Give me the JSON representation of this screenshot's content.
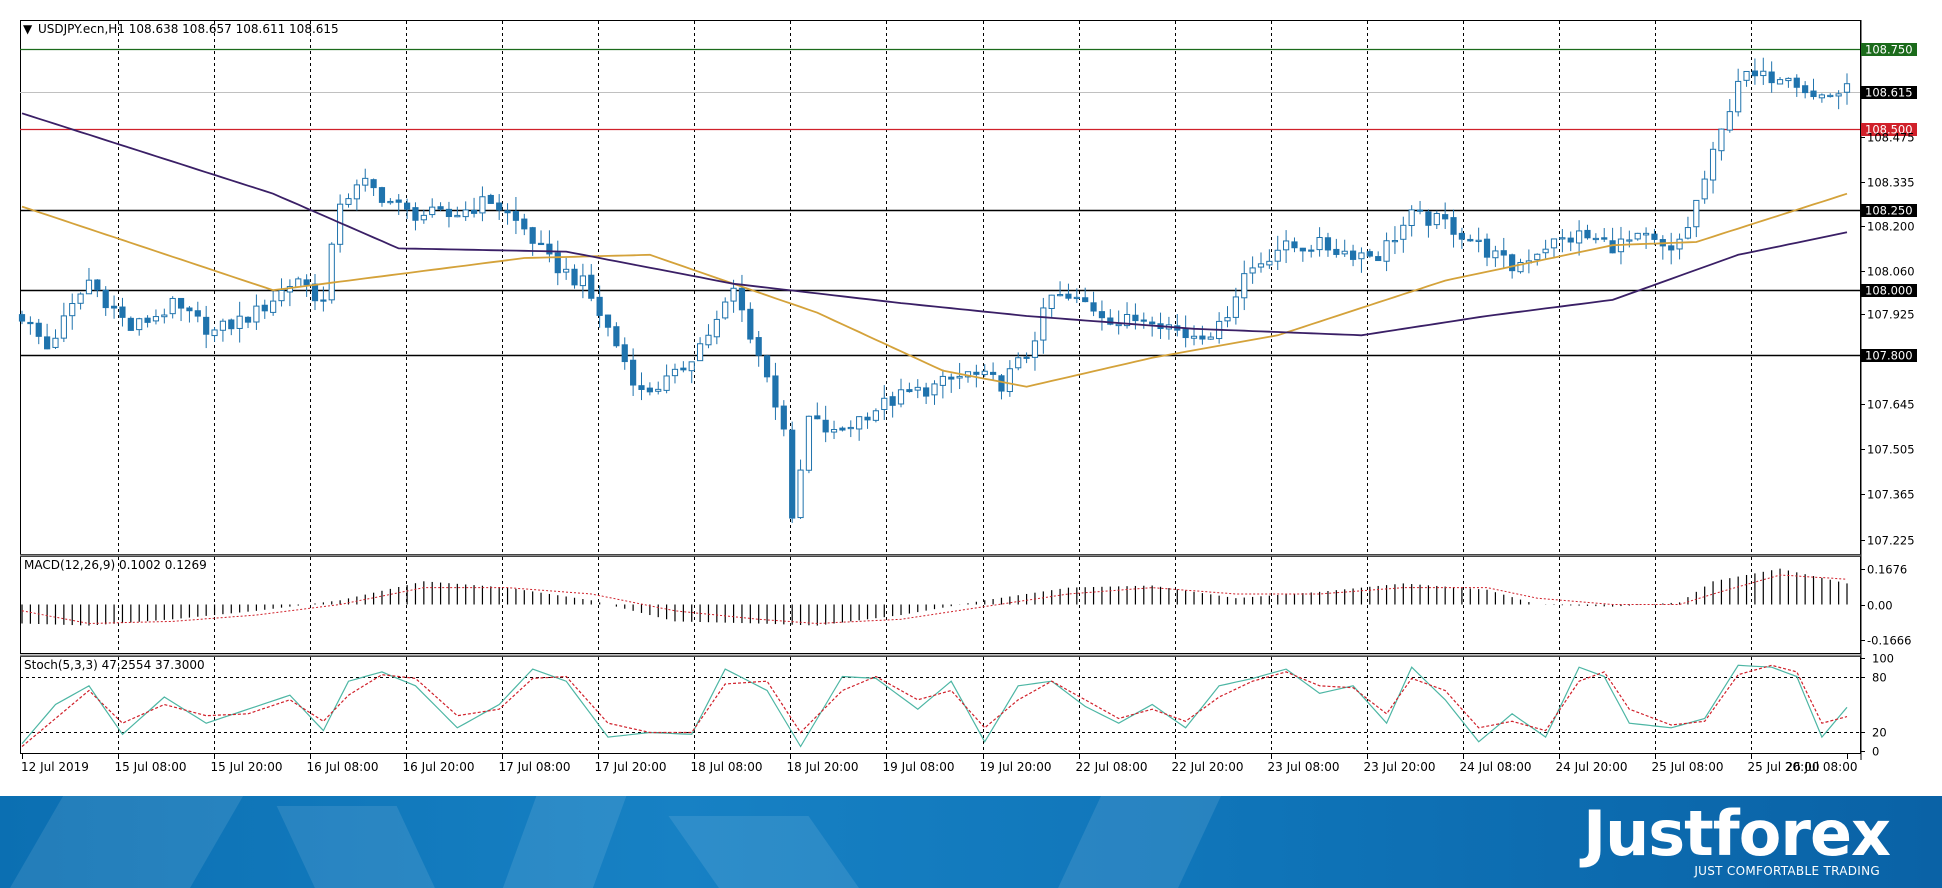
{
  "chart_data": [
    {
      "type": "candlestick",
      "title": "USDJPY.ecn,H1  108.638 108.657 108.611 108.615",
      "title_marker": "▼",
      "x_tick_labels": [
        "12 Jul 2019",
        "15 Jul 08:00",
        "15 Jul 20:00",
        "16 Jul 08:00",
        "16 Jul 20:00",
        "17 Jul 08:00",
        "17 Jul 20:00",
        "18 Jul 08:00",
        "18 Jul 20:00",
        "19 Jul 08:00",
        "19 Jul 20:00",
        "22 Jul 08:00",
        "22 Jul 20:00",
        "23 Jul 08:00",
        "23 Jul 20:00",
        "24 Jul 08:00",
        "24 Jul 20:00",
        "25 Jul 08:00",
        "25 Jul 20:00",
        "26 Jul 08:00"
      ],
      "y_tick_labels": [
        "108.475",
        "108.335",
        "108.200",
        "108.060",
        "107.925",
        "107.645",
        "107.505",
        "107.365",
        "107.225"
      ],
      "ylim": [
        107.18,
        108.84
      ],
      "grid": true,
      "current_price": {
        "value": 108.615,
        "label": "108.615"
      },
      "horizontal_levels": [
        {
          "value": 108.75,
          "label": "108.750",
          "color": "#1b6b1b"
        },
        {
          "value": 108.5,
          "label": "108.500",
          "color": "#d0202a"
        },
        {
          "value": 108.25,
          "label": "108.250",
          "color": "#000000"
        },
        {
          "value": 108.0,
          "label": "108.000",
          "color": "#000000"
        },
        {
          "value": 107.8,
          "label": "107.800",
          "color": "#000000"
        }
      ],
      "series": [
        {
          "type": "ohlc",
          "anchors": [
            [
              0,
              107.92
            ],
            [
              3,
              107.82
            ],
            [
              8,
              108.03
            ],
            [
              13,
              107.88
            ],
            [
              18,
              107.95
            ],
            [
              23,
              107.87
            ],
            [
              28,
              107.93
            ],
            [
              33,
              108.04
            ],
            [
              36,
              107.96
            ],
            [
              38,
              108.28
            ],
            [
              41,
              108.33
            ],
            [
              46,
              108.24
            ],
            [
              51,
              108.23
            ],
            [
              56,
              108.28
            ],
            [
              60,
              108.19
            ],
            [
              63,
              108.09
            ],
            [
              67,
              108.02
            ],
            [
              70,
              107.88
            ],
            [
              74,
              107.68
            ],
            [
              78,
              107.73
            ],
            [
              83,
              107.9
            ],
            [
              85,
              108.0
            ],
            [
              88,
              107.8
            ],
            [
              91,
              107.58
            ],
            [
              92,
              107.27
            ],
            [
              94,
              107.6
            ],
            [
              97,
              107.55
            ],
            [
              101,
              107.62
            ],
            [
              105,
              107.67
            ],
            [
              109,
              107.7
            ],
            [
              113,
              107.74
            ],
            [
              117,
              107.71
            ],
            [
              120,
              107.8
            ],
            [
              123,
              107.98
            ],
            [
              127,
              107.96
            ],
            [
              131,
              107.9
            ],
            [
              135,
              107.92
            ],
            [
              139,
              107.86
            ],
            [
              143,
              107.88
            ],
            [
              146,
              108.05
            ],
            [
              150,
              108.13
            ],
            [
              155,
              108.14
            ],
            [
              158,
              108.12
            ],
            [
              162,
              108.11
            ],
            [
              166,
              108.23
            ],
            [
              170,
              108.21
            ],
            [
              174,
              108.14
            ],
            [
              178,
              108.07
            ],
            [
              182,
              108.14
            ],
            [
              186,
              108.17
            ],
            [
              190,
              108.14
            ],
            [
              194,
              108.16
            ],
            [
              197,
              108.11
            ],
            [
              199,
              108.2
            ],
            [
              203,
              108.49
            ],
            [
              205,
              108.66
            ],
            [
              208,
              108.66
            ],
            [
              211,
              108.68
            ],
            [
              214,
              108.6
            ],
            [
              218,
              108.62
            ]
          ],
          "candle_count": 219,
          "up_color": "#ffffff",
          "down_color": "#1f73ad",
          "outline": "#1f73ad"
        },
        {
          "type": "line",
          "color": "#d4a23a",
          "values": [
            [
              0,
              108.26
            ],
            [
              30,
              108.0
            ],
            [
              60,
              108.1
            ],
            [
              75,
              108.11
            ],
            [
              95,
              107.93
            ],
            [
              110,
              107.75
            ],
            [
              120,
              107.7
            ],
            [
              135,
              107.79
            ],
            [
              150,
              107.86
            ],
            [
              170,
              108.03
            ],
            [
              190,
              108.14
            ],
            [
              200,
              108.15
            ],
            [
              218,
              108.3
            ]
          ]
        },
        {
          "type": "line",
          "color": "#3a1f66",
          "values": [
            [
              0,
              108.55
            ],
            [
              30,
              108.3
            ],
            [
              45,
              108.13
            ],
            [
              65,
              108.12
            ],
            [
              85,
              108.02
            ],
            [
              105,
              107.96
            ],
            [
              120,
              107.92
            ],
            [
              140,
              107.88
            ],
            [
              160,
              107.86
            ],
            [
              175,
              107.92
            ],
            [
              190,
              107.97
            ],
            [
              205,
              108.11
            ],
            [
              218,
              108.18
            ]
          ]
        }
      ]
    },
    {
      "type": "bar",
      "title": "MACD(12,26,9) 0.1002 0.1269",
      "y_tick_labels": [
        "0.1676",
        "0.00",
        "-0.1666"
      ],
      "ylim": [
        -0.23,
        0.23
      ],
      "series": [
        {
          "name": "MACD(12,26,9)",
          "type": "bar",
          "color": "#000000",
          "values": [
            [
              0,
              -0.09
            ],
            [
              8,
              -0.1
            ],
            [
              18,
              -0.07
            ],
            [
              28,
              -0.03
            ],
            [
              38,
              0.02
            ],
            [
              48,
              0.11
            ],
            [
              58,
              0.08
            ],
            [
              68,
              0.02
            ],
            [
              78,
              -0.08
            ],
            [
              88,
              -0.09
            ],
            [
              95,
              -0.1
            ],
            [
              105,
              -0.05
            ],
            [
              115,
              0.02
            ],
            [
              125,
              0.08
            ],
            [
              135,
              0.09
            ],
            [
              145,
              0.03
            ],
            [
              155,
              0.06
            ],
            [
              165,
              0.1
            ],
            [
              175,
              0.07
            ],
            [
              181,
              0.0
            ],
            [
              190,
              -0.01
            ],
            [
              198,
              0.01
            ],
            [
              202,
              0.11
            ],
            [
              210,
              0.17
            ],
            [
              218,
              0.1
            ]
          ]
        },
        {
          "name": "Signal",
          "type": "line",
          "color": "#d0202a",
          "values": [
            [
              0,
              -0.03
            ],
            [
              8,
              -0.09
            ],
            [
              18,
              -0.08
            ],
            [
              28,
              -0.05
            ],
            [
              38,
              0.0
            ],
            [
              48,
              0.08
            ],
            [
              58,
              0.08
            ],
            [
              68,
              0.05
            ],
            [
              78,
              -0.03
            ],
            [
              88,
              -0.07
            ],
            [
              95,
              -0.09
            ],
            [
              105,
              -0.07
            ],
            [
              115,
              -0.01
            ],
            [
              125,
              0.05
            ],
            [
              135,
              0.08
            ],
            [
              145,
              0.05
            ],
            [
              155,
              0.05
            ],
            [
              165,
              0.08
            ],
            [
              175,
              0.08
            ],
            [
              181,
              0.03
            ],
            [
              190,
              0.0
            ],
            [
              198,
              0.0
            ],
            [
              202,
              0.05
            ],
            [
              210,
              0.14
            ],
            [
              218,
              0.12
            ]
          ]
        }
      ]
    },
    {
      "type": "line",
      "title": "Stoch(5,3,3) 47.2554 37.3000",
      "y_tick_labels": [
        "100",
        "80",
        "20",
        "0"
      ],
      "ylim": [
        -2,
        102
      ],
      "levels": [
        80,
        20
      ],
      "series": [
        {
          "name": "Stoch(5,3,3)",
          "type": "line",
          "color": "#4db6a4",
          "values": [
            [
              0,
              8
            ],
            [
              4,
              50
            ],
            [
              8,
              70
            ],
            [
              12,
              18
            ],
            [
              17,
              58
            ],
            [
              22,
              30
            ],
            [
              27,
              45
            ],
            [
              32,
              60
            ],
            [
              36,
              22
            ],
            [
              39,
              75
            ],
            [
              43,
              85
            ],
            [
              47,
              70
            ],
            [
              52,
              25
            ],
            [
              57,
              50
            ],
            [
              61,
              88
            ],
            [
              65,
              75
            ],
            [
              70,
              15
            ],
            [
              75,
              20
            ],
            [
              80,
              18
            ],
            [
              84,
              88
            ],
            [
              89,
              65
            ],
            [
              93,
              5
            ],
            [
              98,
              80
            ],
            [
              102,
              78
            ],
            [
              107,
              45
            ],
            [
              111,
              75
            ],
            [
              115,
              10
            ],
            [
              119,
              70
            ],
            [
              123,
              75
            ],
            [
              127,
              48
            ],
            [
              131,
              30
            ],
            [
              135,
              50
            ],
            [
              139,
              25
            ],
            [
              143,
              70
            ],
            [
              147,
              78
            ],
            [
              151,
              88
            ],
            [
              155,
              62
            ],
            [
              159,
              70
            ],
            [
              163,
              30
            ],
            [
              166,
              90
            ],
            [
              170,
              55
            ],
            [
              174,
              10
            ],
            [
              178,
              40
            ],
            [
              182,
              15
            ],
            [
              186,
              90
            ],
            [
              189,
              80
            ],
            [
              192,
              30
            ],
            [
              197,
              25
            ],
            [
              201,
              35
            ],
            [
              205,
              92
            ],
            [
              209,
              90
            ],
            [
              212,
              80
            ],
            [
              215,
              15
            ],
            [
              218,
              47
            ]
          ]
        },
        {
          "name": "Signal",
          "type": "line",
          "color": "#d0202a",
          "values": [
            [
              0,
              5
            ],
            [
              4,
              35
            ],
            [
              8,
              65
            ],
            [
              12,
              30
            ],
            [
              17,
              50
            ],
            [
              22,
              38
            ],
            [
              27,
              40
            ],
            [
              32,
              55
            ],
            [
              36,
              32
            ],
            [
              39,
              60
            ],
            [
              43,
              82
            ],
            [
              47,
              78
            ],
            [
              52,
              38
            ],
            [
              57,
              45
            ],
            [
              61,
              78
            ],
            [
              65,
              80
            ],
            [
              70,
              30
            ],
            [
              75,
              20
            ],
            [
              80,
              20
            ],
            [
              84,
              72
            ],
            [
              89,
              75
            ],
            [
              93,
              20
            ],
            [
              98,
              65
            ],
            [
              102,
              80
            ],
            [
              107,
              55
            ],
            [
              111,
              65
            ],
            [
              115,
              25
            ],
            [
              119,
              55
            ],
            [
              123,
              75
            ],
            [
              127,
              55
            ],
            [
              131,
              35
            ],
            [
              135,
              45
            ],
            [
              139,
              32
            ],
            [
              143,
              58
            ],
            [
              147,
              75
            ],
            [
              151,
              85
            ],
            [
              155,
              70
            ],
            [
              159,
              68
            ],
            [
              163,
              40
            ],
            [
              166,
              78
            ],
            [
              170,
              65
            ],
            [
              174,
              25
            ],
            [
              178,
              32
            ],
            [
              182,
              22
            ],
            [
              186,
              75
            ],
            [
              189,
              85
            ],
            [
              192,
              45
            ],
            [
              197,
              28
            ],
            [
              201,
              32
            ],
            [
              205,
              82
            ],
            [
              209,
              92
            ],
            [
              212,
              85
            ],
            [
              215,
              30
            ],
            [
              218,
              37
            ]
          ]
        }
      ]
    }
  ],
  "brand": {
    "name": "Justforex",
    "tagline": "JUST COMFORTABLE TRADING"
  }
}
